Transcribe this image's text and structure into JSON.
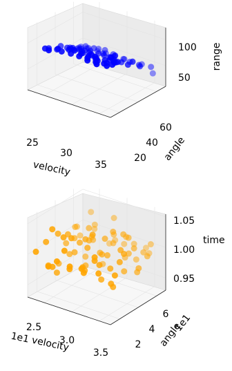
{
  "chart_data": [
    {
      "type": "scatter",
      "projection": "3d",
      "color": "#0000ff",
      "xlabel": "velocity",
      "ylabel": "angle",
      "zlabel": "range",
      "x_ticks": [
        "25",
        "30",
        "35"
      ],
      "y_ticks": [
        "20",
        "40",
        "60"
      ],
      "z_ticks": [
        "50",
        "100"
      ],
      "x_range": [
        22,
        37
      ],
      "y_range": [
        10,
        70
      ],
      "z_range": [
        10,
        130
      ],
      "grid": true,
      "points": [
        [
          22.5,
          65,
          40
        ],
        [
          23.0,
          60,
          45
        ],
        [
          23.5,
          55,
          50
        ],
        [
          24.0,
          62,
          45
        ],
        [
          24.5,
          58,
          55
        ],
        [
          25.0,
          50,
          60
        ],
        [
          25.5,
          55,
          58
        ],
        [
          26.0,
          48,
          62
        ],
        [
          26.5,
          60,
          55
        ],
        [
          27.0,
          52,
          66
        ],
        [
          27.5,
          45,
          70
        ],
        [
          28.0,
          58,
          60
        ],
        [
          28.5,
          40,
          72
        ],
        [
          29.0,
          50,
          65
        ],
        [
          29.5,
          35,
          78
        ],
        [
          30.0,
          55,
          62
        ],
        [
          30.5,
          42,
          75
        ],
        [
          31.0,
          30,
          85
        ],
        [
          31.5,
          48,
          72
        ],
        [
          32.0,
          25,
          90
        ],
        [
          32.5,
          38,
          82
        ],
        [
          33.0,
          20,
          95
        ],
        [
          33.5,
          30,
          88
        ],
        [
          34.0,
          22,
          98
        ],
        [
          34.5,
          28,
          92
        ],
        [
          35.0,
          18,
          100
        ],
        [
          35.5,
          25,
          96
        ],
        [
          36.0,
          20,
          102
        ],
        [
          36.5,
          15,
          105
        ],
        [
          26.0,
          35,
          80
        ],
        [
          27.0,
          30,
          85
        ],
        [
          28.0,
          25,
          92
        ],
        [
          29.0,
          28,
          88
        ],
        [
          30.0,
          20,
          98
        ],
        [
          31.0,
          22,
          95
        ],
        [
          32.0,
          15,
          102
        ],
        [
          33.0,
          18,
          100
        ],
        [
          34.0,
          12,
          104
        ],
        [
          35.0,
          15,
          102
        ],
        [
          36.0,
          12,
          104
        ],
        [
          24.0,
          30,
          75
        ],
        [
          25.0,
          25,
          85
        ],
        [
          26.5,
          20,
          90
        ],
        [
          28.5,
          18,
          95
        ],
        [
          30.5,
          15,
          100
        ],
        [
          32.5,
          12,
          102
        ],
        [
          34.5,
          10,
          104
        ],
        [
          23.0,
          40,
          68
        ],
        [
          24.5,
          38,
          72
        ],
        [
          26.0,
          42,
          70
        ],
        [
          27.5,
          36,
          78
        ],
        [
          29.0,
          45,
          70
        ],
        [
          30.5,
          32,
          82
        ],
        [
          32.0,
          40,
          78
        ],
        [
          33.5,
          35,
          84
        ],
        [
          35.0,
          30,
          90
        ],
        [
          36.5,
          32,
          88
        ],
        [
          25.5,
          65,
          42
        ],
        [
          27.5,
          62,
          48
        ],
        [
          29.5,
          60,
          52
        ],
        [
          31.5,
          58,
          55
        ],
        [
          33.5,
          55,
          60
        ],
        [
          35.5,
          50,
          66
        ],
        [
          36.5,
          45,
          72
        ],
        [
          28.0,
          68,
          38
        ],
        [
          30.0,
          66,
          42
        ],
        [
          32.0,
          64,
          46
        ],
        [
          34.0,
          62,
          50
        ],
        [
          36.0,
          60,
          54
        ],
        [
          35.0,
          68,
          30
        ],
        [
          33.0,
          55,
          58
        ],
        [
          31.0,
          45,
          70
        ],
        [
          29.0,
          35,
          82
        ],
        [
          27.0,
          25,
          90
        ],
        [
          25.0,
          15,
          92
        ],
        [
          23.5,
          20,
          85
        ],
        [
          22.5,
          30,
          72
        ],
        [
          23.0,
          50,
          55
        ],
        [
          24.0,
          45,
          62
        ],
        [
          34.0,
          40,
          76
        ]
      ]
    },
    {
      "type": "scatter",
      "projection": "3d",
      "color": "#ffa500",
      "xlabel": "velocity",
      "ylabel": "angle",
      "zlabel": "time",
      "x_offset": "1e1",
      "y_offset": "1e1",
      "x_ticks": [
        "2.5",
        "3.0",
        "3.5"
      ],
      "y_ticks": [
        "2",
        "4",
        "6"
      ],
      "z_ticks": [
        "0.95",
        "1.00",
        "1.05"
      ],
      "x_range": [
        2.2,
        3.7
      ],
      "y_range": [
        1,
        7
      ],
      "z_range": [
        0.93,
        1.06
      ],
      "grid": true,
      "points": [
        [
          2.25,
          1.6,
          1.0
        ],
        [
          2.3,
          2.4,
          1.01
        ],
        [
          2.35,
          5.8,
          0.99
        ],
        [
          2.4,
          3.1,
          1.02
        ],
        [
          2.45,
          4.6,
          1.0
        ],
        [
          2.5,
          1.9,
          0.98
        ],
        [
          2.55,
          6.2,
          1.01
        ],
        [
          2.6,
          3.7,
          0.99
        ],
        [
          2.65,
          2.2,
          1.03
        ],
        [
          2.7,
          5.1,
          1.0
        ],
        [
          2.75,
          4.0,
          0.97
        ],
        [
          2.8,
          1.4,
          1.02
        ],
        [
          2.85,
          6.6,
          0.99
        ],
        [
          2.9,
          3.3,
          1.01
        ],
        [
          2.95,
          2.7,
          0.98
        ],
        [
          3.0,
          5.5,
          1.0
        ],
        [
          3.05,
          4.3,
          1.02
        ],
        [
          3.1,
          1.7,
          0.99
        ],
        [
          3.15,
          6.0,
          1.01
        ],
        [
          3.2,
          3.0,
          0.97
        ],
        [
          3.25,
          2.5,
          1.0
        ],
        [
          3.3,
          4.8,
          1.03
        ],
        [
          3.35,
          5.9,
          0.98
        ],
        [
          3.4,
          1.5,
          1.0
        ],
        [
          3.45,
          3.6,
          1.02
        ],
        [
          3.5,
          6.4,
          0.99
        ],
        [
          3.55,
          2.9,
          1.01
        ],
        [
          3.6,
          4.5,
          0.98
        ],
        [
          3.65,
          5.3,
          1.0
        ],
        [
          2.28,
          3.9,
          0.96
        ],
        [
          2.38,
          6.8,
          1.02
        ],
        [
          2.48,
          2.0,
          1.04
        ],
        [
          2.58,
          5.0,
          0.97
        ],
        [
          2.68,
          1.3,
          1.0
        ],
        [
          2.78,
          4.2,
          1.01
        ],
        [
          2.88,
          6.3,
          1.03
        ],
        [
          2.98,
          2.3,
          0.99
        ],
        [
          3.08,
          3.8,
          1.0
        ],
        [
          3.18,
          5.7,
          0.98
        ],
        [
          3.28,
          1.8,
          1.02
        ],
        [
          3.38,
          4.9,
          1.0
        ],
        [
          3.48,
          2.6,
          0.97
        ],
        [
          3.58,
          6.1,
          1.01
        ],
        [
          2.33,
          4.4,
          0.99
        ],
        [
          2.53,
          3.4,
          1.02
        ],
        [
          2.73,
          6.7,
          0.98
        ],
        [
          2.93,
          1.2,
          1.0
        ],
        [
          3.13,
          4.7,
          1.03
        ],
        [
          3.33,
          3.2,
          0.99
        ],
        [
          3.53,
          5.6,
          1.0
        ],
        [
          2.43,
          2.8,
          0.96
        ],
        [
          2.63,
          5.4,
          1.0
        ],
        [
          2.83,
          3.5,
          1.02
        ],
        [
          3.03,
          6.5,
          0.99
        ],
        [
          3.23,
          2.1,
          1.01
        ],
        [
          3.43,
          4.1,
          0.98
        ],
        [
          3.63,
          1.9,
          1.0
        ],
        [
          2.36,
          5.2,
          1.01
        ],
        [
          2.56,
          1.1,
          0.99
        ],
        [
          2.76,
          2.4,
          1.03
        ],
        [
          2.96,
          5.8,
          1.01
        ],
        [
          3.16,
          3.9,
          1.0
        ],
        [
          3.36,
          6.9,
          0.99
        ],
        [
          3.56,
          3.3,
          1.02
        ],
        [
          2.26,
          6.0,
          1.0
        ],
        [
          2.46,
          4.0,
          0.98
        ],
        [
          2.66,
          4.9,
          1.02
        ],
        [
          2.86,
          1.6,
          0.99
        ],
        [
          3.06,
          2.9,
          1.04
        ],
        [
          3.26,
          6.2,
          1.0
        ],
        [
          3.46,
          5.0,
          1.01
        ],
        [
          3.66,
          4.3,
          0.99
        ],
        [
          2.31,
          2.6,
          0.97
        ],
        [
          2.71,
          3.6,
          1.01
        ],
        [
          3.11,
          1.4,
          1.0
        ],
        [
          3.51,
          2.2,
          0.98
        ],
        [
          2.91,
          4.6,
          0.99
        ],
        [
          2.51,
          6.4,
          1.0
        ],
        [
          3.31,
          5.3,
          1.02
        ],
        [
          2.81,
          5.5,
          0.96
        ]
      ]
    }
  ]
}
